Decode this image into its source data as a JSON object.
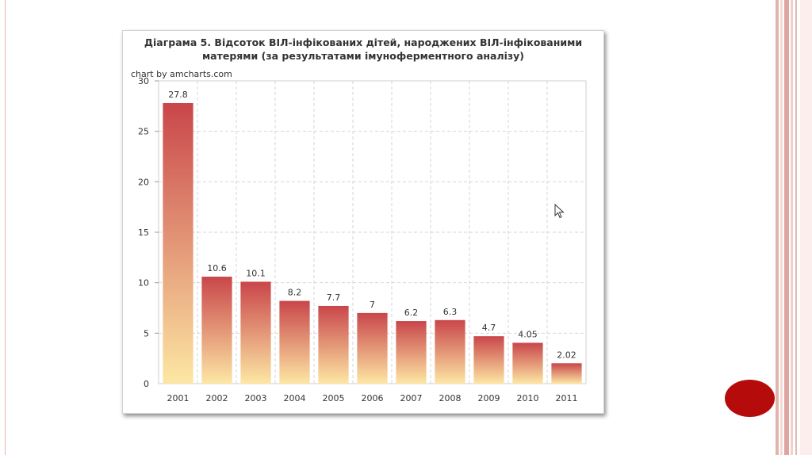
{
  "chart_title_line1": "Діаграма 5. Відсоток ВІЛ-інфікованих дітей, народжених ВІЛ-інфікованими",
  "chart_title_line2": "матерями (за результатами імуноферментного аналізу)",
  "credit": "chart by amcharts.com",
  "colors": {
    "bar_top": "#c9464a",
    "bar_bottom": "#fde7a4",
    "accent_dot": "#b50b0b"
  },
  "chart_data": {
    "type": "bar",
    "categories": [
      "2001",
      "2002",
      "2003",
      "2004",
      "2005",
      "2006",
      "2007",
      "2008",
      "2009",
      "2010",
      "2011"
    ],
    "values": [
      27.8,
      10.6,
      10.1,
      8.2,
      7.7,
      7,
      6.2,
      6.3,
      4.7,
      4.05,
      2.02
    ],
    "value_labels": [
      "27.8",
      "10.6",
      "10.1",
      "8.2",
      "7.7",
      "7",
      "6.2",
      "6.3",
      "4.7",
      "4.05",
      "2.02"
    ],
    "yticks": [
      "0",
      "5",
      "10",
      "15",
      "20",
      "25",
      "30"
    ],
    "ylim": [
      0,
      30
    ],
    "grid": true
  }
}
